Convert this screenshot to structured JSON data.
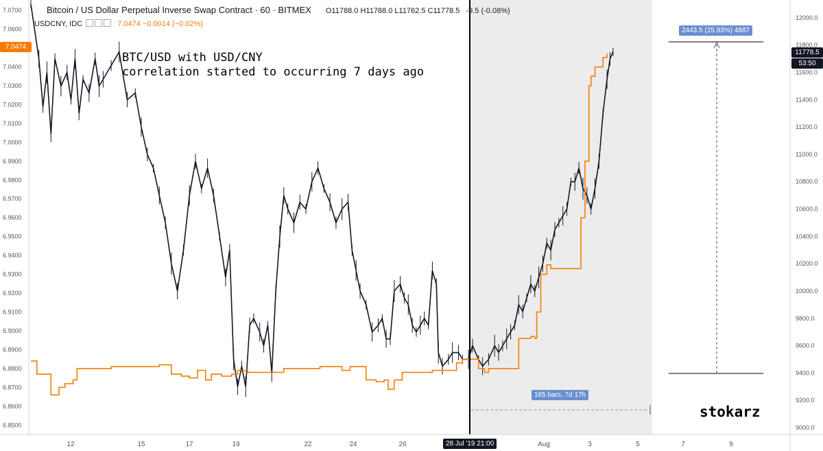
{
  "header": {
    "title": "Bitcoin / US Dollar Perpetual Inverse Swap Contract · 60 · BITMEX",
    "ohlc": "O11788.0 H11788.0 L11762.5 C11778.5",
    "change": "-9.5 (-0.08%)",
    "symbol2": "USDCNY, IDC",
    "symbol2_value": "7.0474 −0.0014 (−0.02%)"
  },
  "annotation": "BTC/USD with USD/CNY\ncorrelation started to occurring 7 days ago",
  "author": "stokarz",
  "measure_label": "2443.5 (25.93%) 4887",
  "bars_label": "185 bars, 7d 17h",
  "price_tag": "11778.5",
  "time_tag": "53:50",
  "cny_tag": "7.0474",
  "crosshair_time": "28 Jul '19  21:00",
  "colors": {
    "btc": "#131722",
    "cny": "#f57c00",
    "tag": "#6a8fcf",
    "shade": "#ececec"
  },
  "chart_data": {
    "type": "line",
    "x_tick_labels": [
      "12",
      "15",
      "17",
      "19",
      "22",
      "24",
      "26",
      "28 Jul '19",
      "Aug",
      "3",
      "5",
      "7",
      "9"
    ],
    "right_axis": {
      "labels": [
        "12000.0",
        "11800.0",
        "11600.0",
        "11400.0",
        "11200.0",
        "11000.0",
        "10800.0",
        "10600.0",
        "10400.0",
        "10200.0",
        "10000.0",
        "9800.0",
        "9600.0",
        "9400.0",
        "9200.0",
        "9000.0"
      ],
      "range": [
        8950,
        12130
      ]
    },
    "left_axis": {
      "labels": [
        "7.0700",
        "7.0600",
        "7.0500",
        "7.0400",
        "7.0300",
        "7.0200",
        "7.0100",
        "7.0000",
        "6.9900",
        "6.9800",
        "6.9700",
        "6.9600",
        "6.9500",
        "6.9400",
        "6.9300",
        "6.9200",
        "6.9100",
        "6.9000",
        "6.8900",
        "6.8800",
        "6.8700",
        "6.8600",
        "6.8500"
      ],
      "range": [
        6.845,
        7.0755
      ]
    },
    "series": [
      {
        "name": "Bitcoin / US Dollar Perpetual Inverse Swap Contract",
        "axis": "right",
        "points": [
          [
            0,
            12100
          ],
          [
            8,
            11700
          ],
          [
            12,
            11350
          ],
          [
            16,
            11600
          ],
          [
            20,
            11150
          ],
          [
            24,
            11700
          ],
          [
            30,
            11500
          ],
          [
            36,
            11600
          ],
          [
            40,
            11400
          ],
          [
            44,
            11700
          ],
          [
            48,
            11300
          ],
          [
            52,
            11550
          ],
          [
            58,
            11450
          ],
          [
            64,
            11700
          ],
          [
            68,
            11500
          ],
          [
            72,
            11550
          ],
          [
            80,
            11650
          ],
          [
            88,
            11750
          ],
          [
            96,
            11400
          ],
          [
            104,
            11450
          ],
          [
            110,
            11200
          ],
          [
            116,
            11000
          ],
          [
            122,
            10900
          ],
          [
            128,
            10700
          ],
          [
            134,
            10500
          ],
          [
            140,
            10200
          ],
          [
            146,
            10000
          ],
          [
            152,
            10300
          ],
          [
            158,
            10700
          ],
          [
            164,
            10950
          ],
          [
            170,
            10750
          ],
          [
            176,
            10900
          ],
          [
            182,
            10700
          ],
          [
            188,
            10400
          ],
          [
            194,
            10100
          ],
          [
            198,
            10300
          ],
          [
            202,
            9500
          ],
          [
            206,
            9300
          ],
          [
            210,
            9450
          ],
          [
            214,
            9300
          ],
          [
            218,
            9750
          ],
          [
            222,
            9800
          ],
          [
            228,
            9700
          ],
          [
            232,
            9600
          ],
          [
            236,
            9750
          ],
          [
            240,
            9400
          ],
          [
            244,
            10000
          ],
          [
            248,
            10400
          ],
          [
            252,
            10700
          ],
          [
            256,
            10600
          ],
          [
            262,
            10500
          ],
          [
            268,
            10650
          ],
          [
            274,
            10600
          ],
          [
            280,
            10800
          ],
          [
            286,
            10900
          ],
          [
            292,
            10750
          ],
          [
            298,
            10650
          ],
          [
            304,
            10500
          ],
          [
            310,
            10600
          ],
          [
            316,
            10650
          ],
          [
            320,
            10300
          ],
          [
            324,
            10150
          ],
          [
            328,
            10000
          ],
          [
            334,
            9900
          ],
          [
            340,
            9700
          ],
          [
            346,
            9750
          ],
          [
            350,
            9800
          ],
          [
            354,
            9650
          ],
          [
            358,
            9650
          ],
          [
            362,
            10000
          ],
          [
            368,
            10050
          ],
          [
            372,
            9950
          ],
          [
            376,
            9900
          ],
          [
            380,
            9750
          ],
          [
            384,
            9700
          ],
          [
            388,
            9750
          ],
          [
            392,
            9800
          ],
          [
            396,
            9750
          ],
          [
            400,
            10150
          ],
          [
            404,
            10050
          ],
          [
            406,
            9550
          ],
          [
            410,
            9450
          ],
          [
            416,
            9500
          ],
          [
            420,
            9550
          ],
          [
            426,
            9550
          ],
          [
            430,
            9500
          ],
          [
            436,
            9500
          ],
          [
            440,
            9600
          ],
          [
            446,
            9500
          ],
          [
            450,
            9450
          ],
          [
            456,
            9500
          ],
          [
            462,
            9600
          ],
          [
            466,
            9550
          ],
          [
            470,
            9600
          ],
          [
            474,
            9650
          ],
          [
            478,
            9700
          ],
          [
            482,
            9750
          ],
          [
            486,
            9900
          ],
          [
            490,
            9850
          ],
          [
            494,
            9950
          ],
          [
            498,
            10050
          ],
          [
            502,
            10000
          ],
          [
            506,
            10100
          ],
          [
            510,
            10200
          ],
          [
            514,
            10350
          ],
          [
            518,
            10300
          ],
          [
            522,
            10450
          ],
          [
            526,
            10500
          ],
          [
            530,
            10550
          ],
          [
            534,
            10600
          ],
          [
            538,
            10800
          ],
          [
            542,
            10800
          ],
          [
            546,
            10900
          ],
          [
            550,
            10750
          ],
          [
            554,
            10700
          ],
          [
            558,
            10600
          ],
          [
            562,
            10750
          ],
          [
            566,
            10950
          ],
          [
            570,
            11300
          ],
          [
            574,
            11550
          ],
          [
            577,
            11700
          ],
          [
            580,
            11750
          ]
        ]
      },
      {
        "name": "USDCNY, IDC",
        "axis": "left",
        "points": [
          [
            0,
            6.884
          ],
          [
            6,
            6.877
          ],
          [
            14,
            6.877
          ],
          [
            20,
            6.866
          ],
          [
            28,
            6.87
          ],
          [
            34,
            6.872
          ],
          [
            42,
            6.874
          ],
          [
            46,
            6.88
          ],
          [
            56,
            6.88
          ],
          [
            80,
            6.881
          ],
          [
            110,
            6.881
          ],
          [
            128,
            6.882
          ],
          [
            140,
            6.877
          ],
          [
            150,
            6.876
          ],
          [
            158,
            6.875
          ],
          [
            166,
            6.879
          ],
          [
            174,
            6.874
          ],
          [
            180,
            6.877
          ],
          [
            190,
            6.876
          ],
          [
            200,
            6.877
          ],
          [
            206,
            6.879
          ],
          [
            216,
            6.878
          ],
          [
            232,
            6.878
          ],
          [
            252,
            6.88
          ],
          [
            270,
            6.88
          ],
          [
            288,
            6.881
          ],
          [
            300,
            6.881
          ],
          [
            310,
            6.879
          ],
          [
            318,
            6.881
          ],
          [
            326,
            6.881
          ],
          [
            334,
            6.874
          ],
          [
            344,
            6.873
          ],
          [
            352,
            6.874
          ],
          [
            356,
            6.869
          ],
          [
            362,
            6.874
          ],
          [
            370,
            6.878
          ],
          [
            386,
            6.878
          ],
          [
            400,
            6.879
          ],
          [
            410,
            6.879
          ],
          [
            418,
            6.879
          ],
          [
            424,
            6.883
          ],
          [
            430,
            6.885
          ],
          [
            438,
            6.885
          ],
          [
            446,
            6.88
          ],
          [
            452,
            6.878
          ],
          [
            456,
            6.88
          ],
          [
            464,
            6.88
          ],
          [
            470,
            6.88
          ],
          [
            480,
            6.88
          ],
          [
            486,
            6.896
          ],
          [
            492,
            6.896
          ],
          [
            498,
            6.897
          ],
          [
            502,
            6.896
          ],
          [
            504,
            6.91
          ],
          [
            508,
            6.93
          ],
          [
            514,
            6.935
          ],
          [
            518,
            6.933
          ],
          [
            522,
            6.933
          ],
          [
            540,
            6.933
          ],
          [
            546,
            6.933
          ],
          [
            548,
            6.96
          ],
          [
            552,
            6.99
          ],
          [
            556,
            7.03
          ],
          [
            558,
            7.035
          ],
          [
            562,
            7.04
          ],
          [
            566,
            7.04
          ],
          [
            570,
            7.045
          ],
          [
            574,
            7.047
          ]
        ]
      }
    ],
    "crosshair_x": 410,
    "measure": {
      "bars": 185,
      "span": "7d 17h",
      "from": 9416,
      "to": 11860,
      "change": "2443.5 (25.93%)"
    },
    "ylabel_left": "",
    "ylabel_right": "",
    "xlabel": "",
    "grid": false
  }
}
